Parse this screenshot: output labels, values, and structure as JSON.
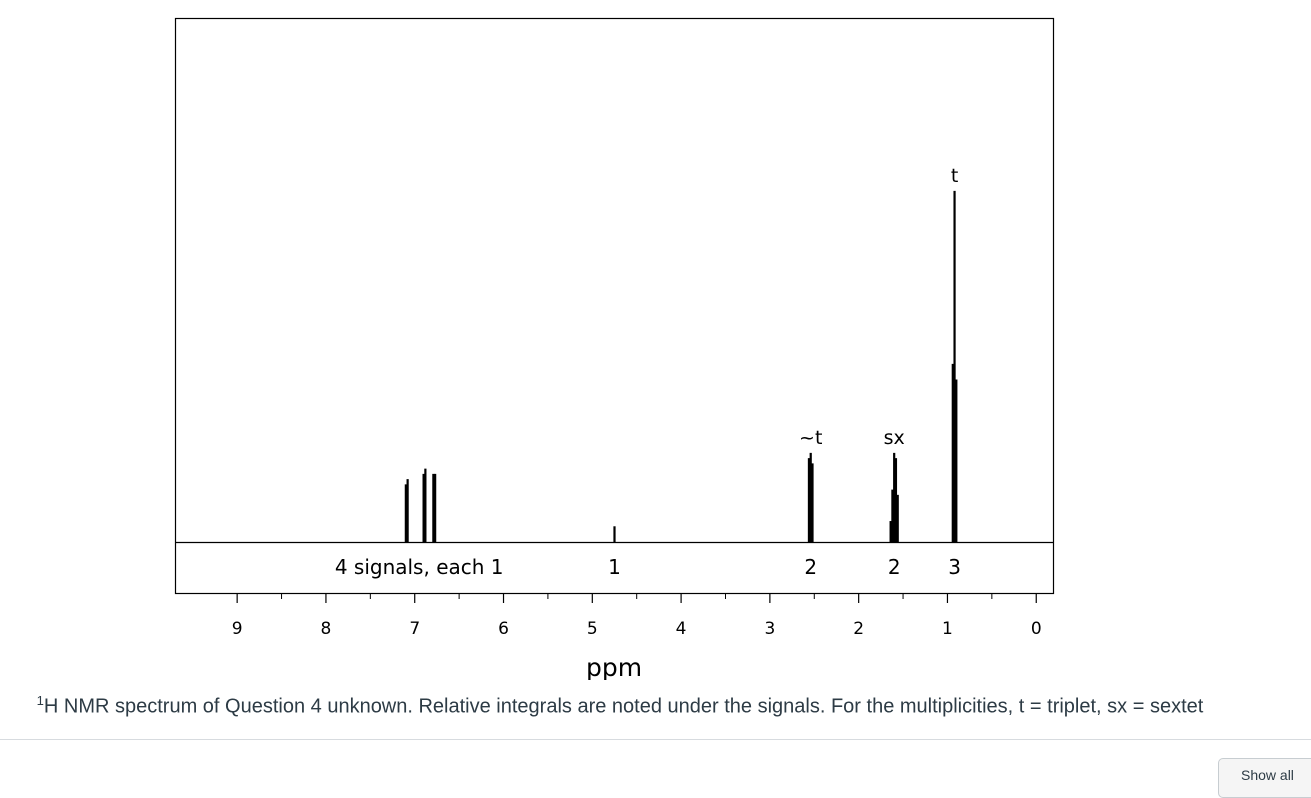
{
  "chart_data": {
    "type": "line",
    "title": "",
    "xlabel": "ppm",
    "ylabel": "",
    "xlim": [
      9.7,
      -0.2
    ],
    "x_reversed": true,
    "x_ticks": [
      "9",
      "8",
      "7",
      "6",
      "5",
      "4",
      "3",
      "2",
      "1",
      "0"
    ],
    "grid": false,
    "peaks": [
      {
        "ppm": 7.1,
        "height": 0.11,
        "group": "aromatic"
      },
      {
        "ppm": 7.08,
        "height": 0.12,
        "group": "aromatic"
      },
      {
        "ppm": 6.9,
        "height": 0.13,
        "group": "aromatic"
      },
      {
        "ppm": 6.88,
        "height": 0.14,
        "group": "aromatic"
      },
      {
        "ppm": 6.79,
        "height": 0.13,
        "group": "aromatic"
      },
      {
        "ppm": 6.77,
        "height": 0.13,
        "group": "aromatic"
      },
      {
        "ppm": 4.75,
        "height": 0.03,
        "group": "OH"
      },
      {
        "ppm": 2.56,
        "height": 0.16,
        "group": "CH2"
      },
      {
        "ppm": 2.54,
        "height": 0.17,
        "group": "CH2"
      },
      {
        "ppm": 2.52,
        "height": 0.15,
        "group": "CH2"
      },
      {
        "ppm": 1.64,
        "height": 0.04,
        "group": "CH2"
      },
      {
        "ppm": 1.62,
        "height": 0.1,
        "group": "CH2"
      },
      {
        "ppm": 1.6,
        "height": 0.17,
        "group": "CH2"
      },
      {
        "ppm": 1.58,
        "height": 0.16,
        "group": "CH2"
      },
      {
        "ppm": 1.56,
        "height": 0.09,
        "group": "CH2"
      },
      {
        "ppm": 0.94,
        "height": 0.34,
        "group": "CH3"
      },
      {
        "ppm": 0.92,
        "height": 0.67,
        "group": "CH3"
      },
      {
        "ppm": 0.9,
        "height": 0.31,
        "group": "CH3"
      }
    ],
    "annotations": [
      {
        "text": "~t",
        "ppm": 2.54
      },
      {
        "text": "sx",
        "ppm": 1.6
      },
      {
        "text": "t",
        "ppm": 0.92
      }
    ],
    "integrals": [
      {
        "text": "4 signals, each 1",
        "ppm": 6.95
      },
      {
        "text": "1",
        "ppm": 4.75
      },
      {
        "text": "2",
        "ppm": 2.54
      },
      {
        "text": "2",
        "ppm": 1.6
      },
      {
        "text": "3",
        "ppm": 0.92
      }
    ]
  },
  "caption": {
    "sup": "1",
    "text": "H NMR spectrum of Question 4 unknown. Relative integrals are noted under the signals. For the multiplicities, t = triplet, sx = sextet"
  },
  "show_all_label": "Show all"
}
